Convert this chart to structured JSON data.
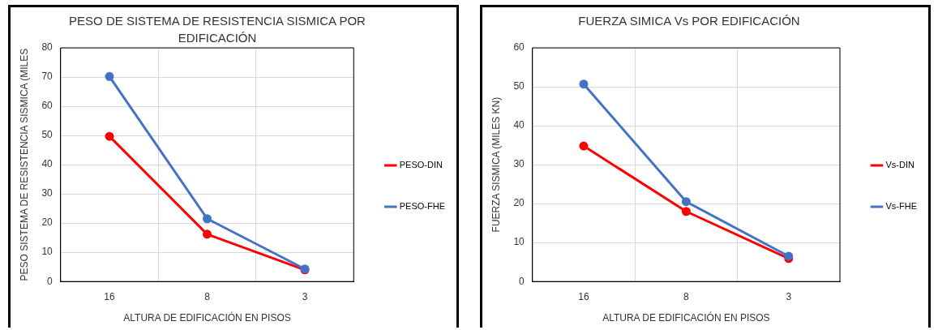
{
  "chart_data": [
    {
      "type": "line",
      "title": "PESO DE SISTEMA DE RESISTENCIA SISMICA  POR EDIFICACIÓN",
      "xlabel": "ALTURA DE EDIFICACIÓN EN PISOS",
      "ylabel": "PESO SISTEMA DE RESISTENCIA SISMICA (MILES",
      "categories": [
        "16",
        "8",
        "3"
      ],
      "series": [
        {
          "name": "PESO-DIN",
          "color": "#ff0000",
          "values": [
            49.7,
            16.2,
            4.0
          ]
        },
        {
          "name": "PESO-FHE",
          "color": "#4472c4",
          "values": [
            70.2,
            21.5,
            4.3
          ]
        }
      ],
      "ylim": [
        0,
        80
      ],
      "yticks": [
        0,
        10,
        20,
        30,
        40,
        50,
        60,
        70,
        80
      ],
      "grid": true,
      "legend": "right",
      "marker": "circle"
    },
    {
      "type": "line",
      "title": "FUERZA SIMICA Vs POR EDIFICACIÓN",
      "xlabel": "ALTURA DE EDIFICACIÓN EN PISOS",
      "ylabel": "FUERZA SISMICA (MILES KN)",
      "categories": [
        "16",
        "8",
        "3"
      ],
      "series": [
        {
          "name": "Vs-DIN",
          "color": "#ff0000",
          "values": [
            34.8,
            18.0,
            5.9
          ]
        },
        {
          "name": "Vs-FHE",
          "color": "#4472c4",
          "values": [
            50.7,
            20.5,
            6.5
          ]
        }
      ],
      "ylim": [
        0,
        60
      ],
      "yticks": [
        0,
        10,
        20,
        30,
        40,
        50,
        60
      ],
      "grid": true,
      "legend": "right",
      "marker": "circle"
    }
  ]
}
